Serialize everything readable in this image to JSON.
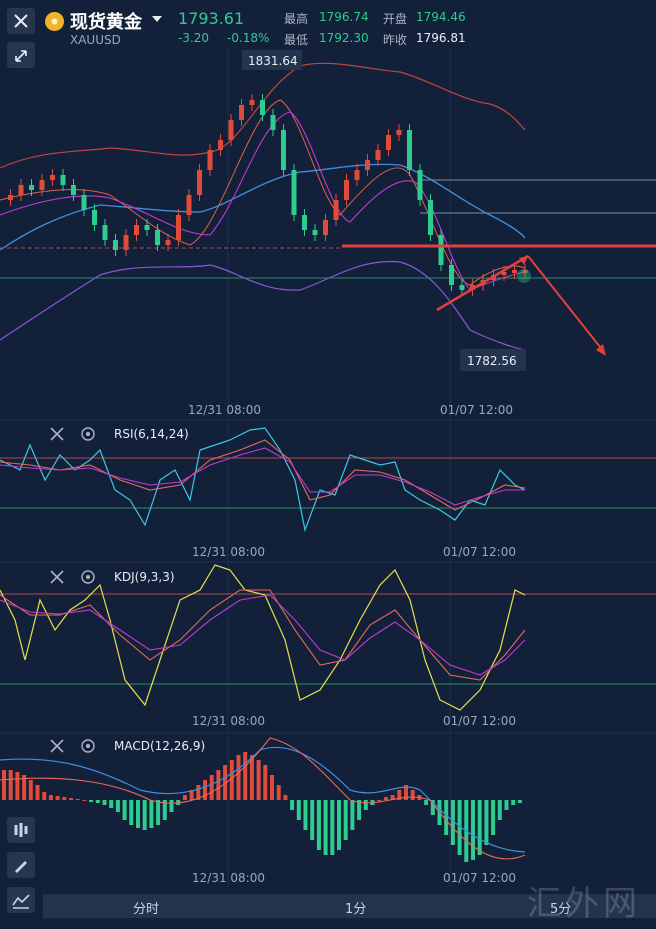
{
  "header": {
    "instrument_name": "现货黄金",
    "symbol": "XAUUSD",
    "last_price": "1793.61",
    "change": "-3.20",
    "change_percent": "-0.18%",
    "high_label": "最高",
    "high_value": "1796.74",
    "open_label": "开盘",
    "open_value": "1794.46",
    "low_label": "最低",
    "low_value": "1792.30",
    "prev_close_label": "昨收",
    "prev_close_value": "1796.81"
  },
  "main_chart": {
    "max_label": "1831.64",
    "min_label": "1782.56",
    "time_labels": [
      "12/31 08:00",
      "01/07 12:00"
    ]
  },
  "rsi": {
    "title": "RSI(6,14,24)",
    "time_labels": [
      "12/31 08:00",
      "01/07 12:00"
    ]
  },
  "kdj": {
    "title": "KDJ(9,3,3)",
    "time_labels": [
      "12/31 08:00",
      "01/07 12:00"
    ]
  },
  "macd": {
    "title": "MACD(12,26,9)",
    "time_labels": [
      "12/31 08:00",
      "01/07 12:00"
    ]
  },
  "bottom_tabs": [
    "分时",
    "1分",
    "5分"
  ],
  "watermark": "汇外网",
  "colors": {
    "up": "#e04b3a",
    "down": "#2ecc8f",
    "accent": "#f0b429",
    "background": "#13203a"
  },
  "icons": [
    "close-icon",
    "shrink-icon",
    "gold-coin-icon",
    "chevron-down-icon",
    "settings-icon",
    "candlestick-icon",
    "pencil-icon",
    "indicator-icon"
  ]
}
